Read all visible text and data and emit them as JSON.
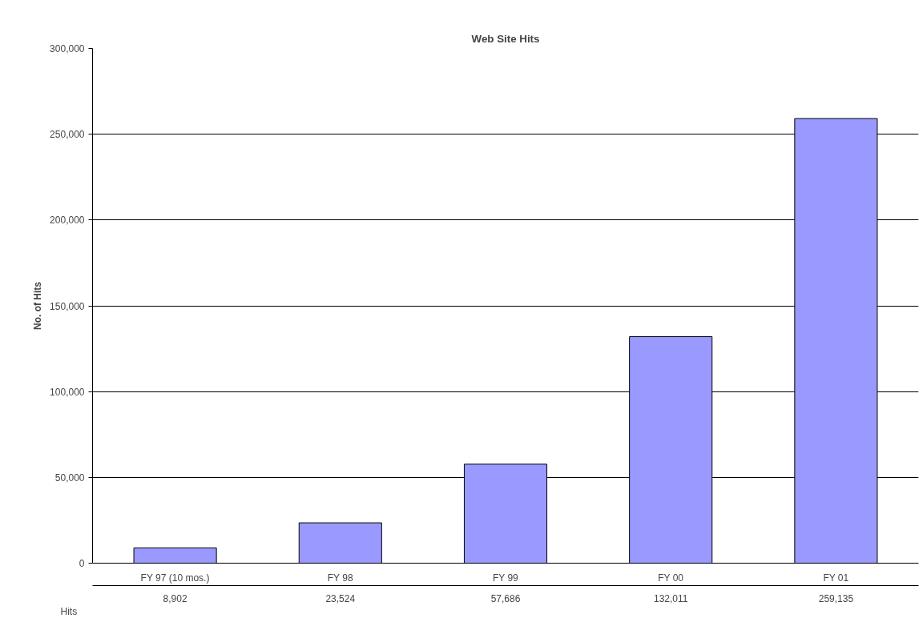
{
  "chart_data": {
    "type": "bar",
    "title": "Web Site Hits",
    "ylabel": "No. of Hits",
    "categories": [
      "FY 97 (10 mos.)",
      "FY 98",
      "FY 99",
      "FY 00",
      "FY 01"
    ],
    "series": [
      {
        "name": "Hits",
        "color": "#9999ff",
        "values": [
          8902,
          23524,
          57686,
          132011,
          259135
        ],
        "value_labels": [
          "8,902",
          "23,524",
          "57,686",
          "132,011",
          "259,135"
        ]
      }
    ],
    "ylim": [
      0,
      300000
    ],
    "yticks": [
      {
        "value": 0,
        "label": "0"
      },
      {
        "value": 50000,
        "label": "50,000"
      },
      {
        "value": 100000,
        "label": "100,000"
      },
      {
        "value": 150000,
        "label": "150,000"
      },
      {
        "value": 200000,
        "label": "200,000"
      },
      {
        "value": 250000,
        "label": "250,000"
      },
      {
        "value": 300000,
        "label": "300,000"
      }
    ],
    "grid": "y"
  }
}
